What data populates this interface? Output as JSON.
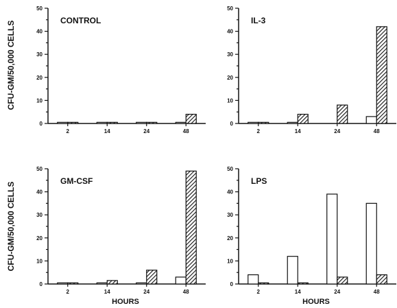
{
  "figure": {
    "ylabel": "CFU-GM/50,000 CELLS",
    "xlabel": "HOURS"
  },
  "chart_data": [
    {
      "type": "bar",
      "title": "CONTROL",
      "categories": [
        "2",
        "14",
        "24",
        "48"
      ],
      "series": [
        {
          "values": [
            0.5,
            0.5,
            0.5,
            0.5
          ],
          "style": "open"
        },
        {
          "values": [
            0.5,
            0.5,
            0.5,
            4
          ],
          "style": "hatched"
        }
      ],
      "ylim": [
        0,
        50
      ],
      "yticks": [
        "0",
        "10",
        "20",
        "30",
        "40",
        "50"
      ],
      "xlabel": ""
    },
    {
      "type": "bar",
      "title": "IL-3",
      "categories": [
        "2",
        "14",
        "24",
        "48"
      ],
      "series": [
        {
          "values": [
            0.5,
            0.5,
            0,
            3
          ],
          "style": "open"
        },
        {
          "values": [
            0.5,
            4,
            8,
            42
          ],
          "style": "hatched"
        }
      ],
      "ylim": [
        0,
        50
      ],
      "yticks": [
        "0",
        "10",
        "20",
        "30",
        "40",
        "50"
      ],
      "xlabel": ""
    },
    {
      "type": "bar",
      "title": "GM-CSF",
      "categories": [
        "2",
        "14",
        "24",
        "48"
      ],
      "series": [
        {
          "values": [
            0.5,
            0.5,
            0.5,
            3
          ],
          "style": "open"
        },
        {
          "values": [
            0.5,
            1.5,
            6,
            49
          ],
          "style": "hatched"
        }
      ],
      "ylim": [
        0,
        50
      ],
      "yticks": [
        "0",
        "10",
        "20",
        "30",
        "40",
        "50"
      ],
      "xlabel": "HOURS"
    },
    {
      "type": "bar",
      "title": "LPS",
      "categories": [
        "2",
        "14",
        "24",
        "48"
      ],
      "series": [
        {
          "values": [
            4,
            12,
            39,
            35
          ],
          "style": "open"
        },
        {
          "values": [
            0.5,
            0.5,
            3,
            4
          ],
          "style": "hatched"
        }
      ],
      "ylim": [
        0,
        50
      ],
      "yticks": [
        "0",
        "10",
        "20",
        "30",
        "40",
        "50"
      ],
      "xlabel": "HOURS"
    }
  ]
}
